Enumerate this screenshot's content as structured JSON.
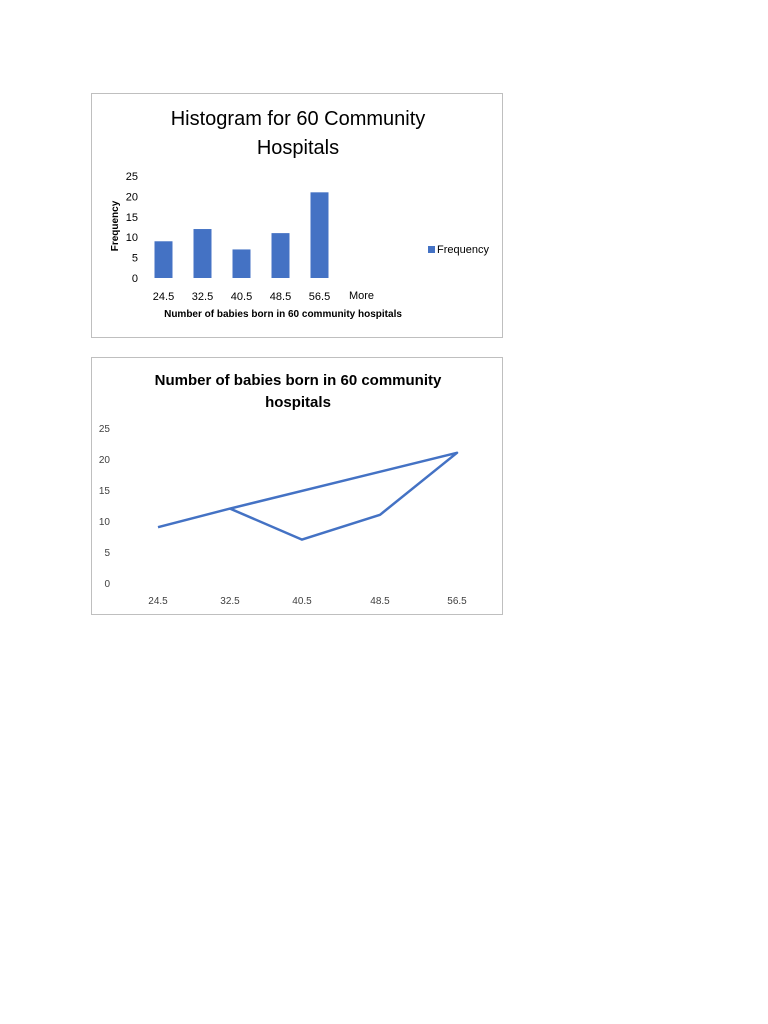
{
  "colors": {
    "series": "#4472c4",
    "frame": "#bfbfbf"
  },
  "chart_data": [
    {
      "type": "bar",
      "title_lines": [
        "Histogram for 60 Community",
        "Hospitals"
      ],
      "categories": [
        "24.5",
        "32.5",
        "40.5",
        "48.5",
        "56.5",
        "More"
      ],
      "series": [
        {
          "name": "Frequency",
          "values": [
            9,
            12,
            7,
            11,
            21,
            0
          ]
        }
      ],
      "xlabel": "Number of babies born in 60 community hospitals",
      "ylabel": "Frequency",
      "yticks": [
        "0",
        "5",
        "10",
        "15",
        "20",
        "25"
      ],
      "ylim": [
        0,
        25
      ],
      "grid": false,
      "legend": {
        "position": "right",
        "label": "Frequency"
      }
    },
    {
      "type": "line",
      "title_lines": [
        "Number of babies born in 60 community",
        "hospitals"
      ],
      "categories": [
        "24.5",
        "32.5",
        "40.5",
        "48.5",
        "56.5"
      ],
      "points": [
        {
          "x": "24.5",
          "y": 9
        },
        {
          "x": "32.5",
          "y": 12
        },
        {
          "x": "40.5",
          "y": 7
        },
        {
          "x": "48.5",
          "y": 11
        },
        {
          "x": "56.5",
          "y": 21
        },
        {
          "x": "32.5",
          "y": 12
        }
      ],
      "yticks": [
        "0",
        "5",
        "10",
        "15",
        "20",
        "25"
      ],
      "ylim": [
        0,
        25
      ],
      "grid": false
    }
  ]
}
